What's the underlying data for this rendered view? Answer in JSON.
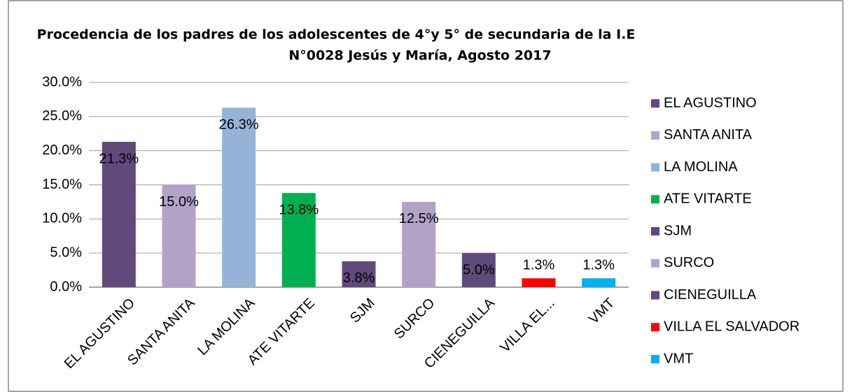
{
  "chart_data": {
    "type": "bar",
    "title": [
      "Procedencia de los padres de los adolescentes de 4°y 5° de secundaria de la I.E",
      "N°0028 Jesús y María,  Agosto 2017"
    ],
    "categories": [
      "EL AGUSTINO",
      "SANTA ANITA",
      "LA MOLINA",
      "ATE VITARTE",
      "SJM",
      "SURCO",
      "CIENEGUILLA",
      "VILLA EL...",
      "VMT"
    ],
    "values": [
      21.3,
      15.0,
      26.3,
      13.8,
      3.8,
      12.5,
      5.0,
      1.3,
      1.3
    ],
    "value_labels": [
      "21.3%",
      "15.0%",
      "26.3%",
      "13.8%",
      "3.8%",
      "12.5%",
      "5.0%",
      "1.3%",
      "1.3%"
    ],
    "colors": [
      "#604a7b",
      "#b3a2c7",
      "#95b3d7",
      "#00b050",
      "#604a7b",
      "#b3a2c7",
      "#604a7b",
      "#ff0000",
      "#00b0f0"
    ],
    "legend": [
      "EL AGUSTINO",
      "SANTA ANITA",
      "LA MOLINA",
      "ATE VITARTE",
      "SJM",
      "SURCO",
      "CIENEGUILLA",
      "VILLA EL SALVADOR",
      "VMT"
    ],
    "ylim": [
      0,
      30
    ],
    "yticks": [
      {
        "value": 0,
        "label": "0.0%"
      },
      {
        "value": 5,
        "label": "5.0%"
      },
      {
        "value": 10,
        "label": "10.0%"
      },
      {
        "value": 15,
        "label": "15.0%"
      },
      {
        "value": 20,
        "label": "20.0%"
      },
      {
        "value": 25,
        "label": "25.0%"
      },
      {
        "value": 30,
        "label": "30.0%"
      }
    ],
    "grid": true,
    "legend_position": "right"
  }
}
